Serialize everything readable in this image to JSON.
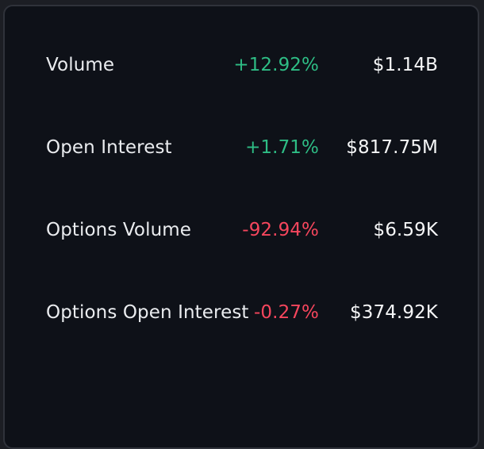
{
  "colors": {
    "positive": "#2ebd85",
    "negative": "#f6465d",
    "background": "#0e1118",
    "text": "#eaecef"
  },
  "metrics": [
    {
      "label": "Volume",
      "change": "+12.92%",
      "direction": "up",
      "value": "$1.14B"
    },
    {
      "label": "Open Interest",
      "change": "+1.71%",
      "direction": "up",
      "value": "$817.75M"
    },
    {
      "label": "Options Volume",
      "change": "-92.94%",
      "direction": "down",
      "value": "$6.59K"
    },
    {
      "label": "Options Open Interest",
      "change": "-0.27%",
      "direction": "down",
      "value": "$374.92K"
    }
  ]
}
